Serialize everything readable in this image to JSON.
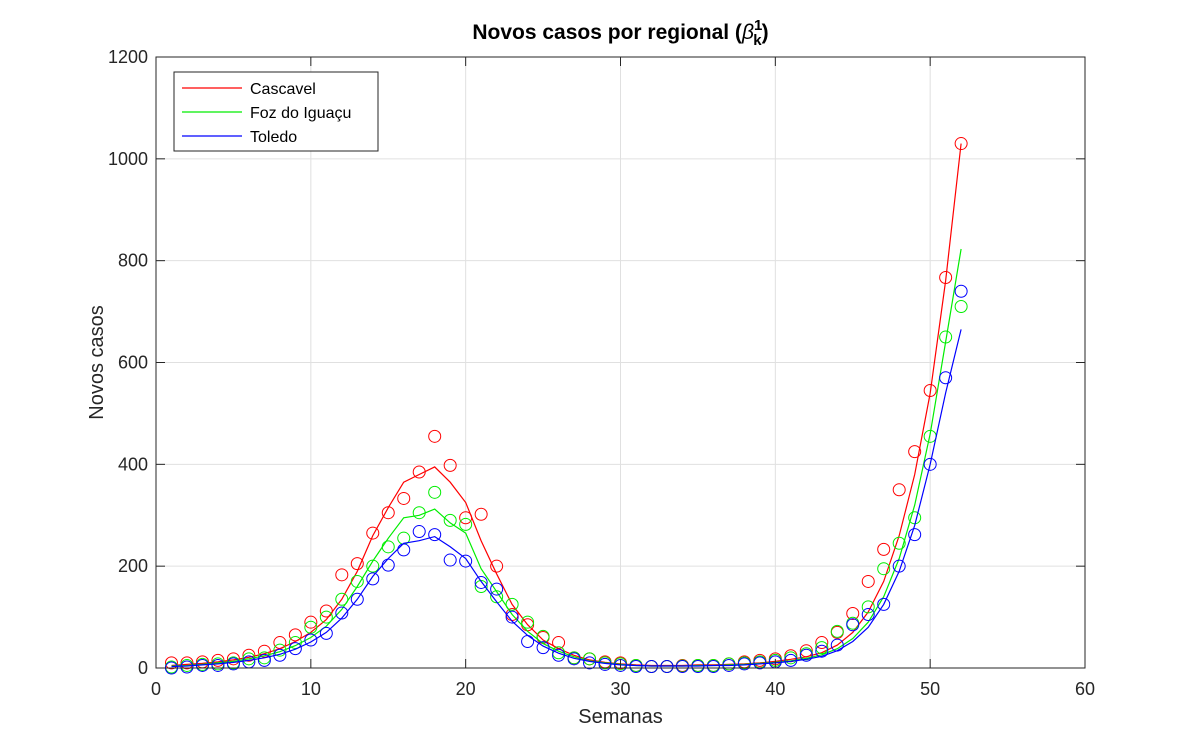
{
  "chart_data": {
    "type": "line",
    "title": "Novos casos por regional (",
    "title_symbol": "β",
    "title_sup": "1",
    "title_sub": "k",
    "title_end": ")",
    "xlabel": "Semanas",
    "ylabel": "Novos casos",
    "xlim": [
      0,
      60
    ],
    "ylim": [
      0,
      1200
    ],
    "xticks": [
      0,
      10,
      20,
      30,
      40,
      50,
      60
    ],
    "yticks": [
      0,
      200,
      400,
      600,
      800,
      1000,
      1200
    ],
    "grid": true,
    "legend_position": "top-left",
    "x": [
      1,
      2,
      3,
      4,
      5,
      6,
      7,
      8,
      9,
      10,
      11,
      12,
      13,
      14,
      15,
      16,
      17,
      18,
      19,
      20,
      21,
      22,
      23,
      24,
      25,
      26,
      27,
      28,
      29,
      30,
      31,
      32,
      33,
      34,
      35,
      36,
      37,
      38,
      39,
      40,
      41,
      42,
      43,
      44,
      45,
      46,
      47,
      48,
      49,
      50,
      51,
      52
    ],
    "series": [
      {
        "name": "Cascavel",
        "color": "#ff0000",
        "model": [
          5,
          7,
          9,
          12,
          16,
          21,
          28,
          38,
          52,
          70,
          95,
          135,
          190,
          260,
          315,
          365,
          380,
          395,
          365,
          325,
          250,
          185,
          125,
          85,
          55,
          38,
          25,
          16,
          11,
          8,
          6,
          5,
          5,
          5,
          6,
          6,
          7,
          8,
          10,
          13,
          17,
          22,
          30,
          45,
          70,
          110,
          170,
          260,
          380,
          540,
          760,
          1030
        ],
        "observed": [
          10,
          10,
          12,
          15,
          18,
          25,
          33,
          50,
          65,
          90,
          112,
          183,
          205,
          265,
          305,
          333,
          385,
          455,
          398,
          295,
          302,
          200,
          105,
          85,
          60,
          50,
          20,
          18,
          12,
          10,
          5,
          3,
          3,
          5,
          5,
          5,
          8,
          12,
          15,
          18,
          24,
          34,
          50,
          70,
          107,
          170,
          233,
          350,
          425,
          545,
          767,
          1030
        ]
      },
      {
        "name": "Foz do Iguaçu",
        "color": "#00ee00",
        "model": [
          4,
          5,
          7,
          10,
          13,
          18,
          24,
          32,
          44,
          60,
          82,
          115,
          160,
          210,
          255,
          295,
          300,
          312,
          285,
          265,
          195,
          150,
          105,
          72,
          48,
          33,
          22,
          14,
          10,
          7,
          5,
          4,
          4,
          4,
          5,
          5,
          6,
          7,
          9,
          11,
          14,
          19,
          26,
          38,
          58,
          90,
          140,
          215,
          320,
          460,
          640,
          823
        ],
        "observed": [
          2,
          5,
          7,
          8,
          10,
          18,
          20,
          35,
          50,
          80,
          100,
          135,
          170,
          200,
          238,
          255,
          305,
          345,
          290,
          282,
          160,
          140,
          125,
          90,
          62,
          30,
          20,
          18,
          10,
          8,
          5,
          3,
          3,
          4,
          5,
          5,
          8,
          10,
          12,
          15,
          20,
          28,
          40,
          72,
          88,
          120,
          195,
          245,
          295,
          455,
          650,
          710
        ]
      },
      {
        "name": "Toledo",
        "color": "#0000ff",
        "model": [
          3,
          4,
          6,
          8,
          11,
          15,
          20,
          27,
          37,
          51,
          70,
          98,
          135,
          180,
          215,
          245,
          250,
          258,
          238,
          215,
          170,
          130,
          92,
          64,
          43,
          29,
          19,
          13,
          9,
          6,
          5,
          4,
          4,
          4,
          4,
          5,
          5,
          6,
          8,
          10,
          13,
          17,
          23,
          34,
          52,
          80,
          125,
          190,
          280,
          400,
          540,
          665
        ],
        "observed": [
          0,
          2,
          5,
          5,
          8,
          12,
          15,
          25,
          38,
          55,
          68,
          108,
          135,
          175,
          202,
          232,
          268,
          262,
          212,
          210,
          168,
          155,
          100,
          52,
          40,
          25,
          18,
          10,
          7,
          5,
          3,
          3,
          3,
          3,
          3,
          3,
          5,
          8,
          10,
          12,
          15,
          25,
          33,
          45,
          85,
          105,
          125,
          200,
          262,
          400,
          570,
          740
        ]
      }
    ]
  }
}
